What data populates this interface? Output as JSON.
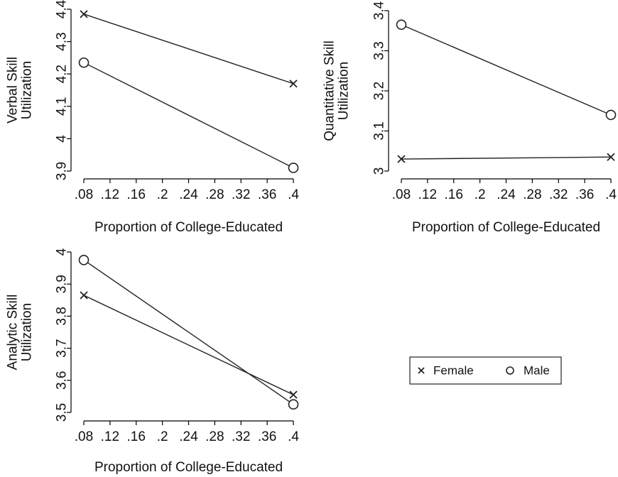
{
  "chart_data": [
    {
      "type": "line",
      "xlabel": "Proportion of College-Educated",
      "ylabel_lines": [
        "Verbal Skill",
        "Utilization"
      ],
      "x_ticks": [
        0.08,
        0.12,
        0.16,
        0.2,
        0.24,
        0.28,
        0.32,
        0.36,
        0.4
      ],
      "x_tick_labels": [
        ".08",
        ".12",
        ".16",
        ".2",
        ".24",
        ".28",
        ".32",
        ".36",
        ".4"
      ],
      "y_ticks": [
        3.9,
        4.0,
        4.1,
        4.2,
        4.3,
        4.4
      ],
      "y_tick_labels": [
        "3.9",
        "4",
        "4.1",
        "4.2",
        "4.3",
        "4.4"
      ],
      "xlim": [
        0.08,
        0.4
      ],
      "ylim": [
        3.9,
        4.4
      ],
      "series": [
        {
          "name": "Female",
          "marker": "x",
          "x": [
            0.08,
            0.4
          ],
          "y": [
            4.385,
            4.17
          ]
        },
        {
          "name": "Male",
          "marker": "o",
          "x": [
            0.08,
            0.4
          ],
          "y": [
            4.235,
            3.91
          ]
        }
      ]
    },
    {
      "type": "line",
      "xlabel": "Proportion of College-Educated",
      "ylabel_lines": [
        "Quantitative Skill",
        "Utilization"
      ],
      "x_ticks": [
        0.08,
        0.12,
        0.16,
        0.2,
        0.24,
        0.28,
        0.32,
        0.36,
        0.4
      ],
      "x_tick_labels": [
        ".08",
        ".12",
        ".16",
        ".2",
        ".24",
        ".28",
        ".32",
        ".36",
        ".4"
      ],
      "y_ticks": [
        3.0,
        3.1,
        3.2,
        3.3,
        3.4
      ],
      "y_tick_labels": [
        "3",
        "3.1",
        "3.2",
        "3.3",
        "3.4"
      ],
      "xlim": [
        0.08,
        0.4
      ],
      "ylim": [
        3.0,
        3.4
      ],
      "series": [
        {
          "name": "Female",
          "marker": "x",
          "x": [
            0.08,
            0.4
          ],
          "y": [
            3.03,
            3.035
          ]
        },
        {
          "name": "Male",
          "marker": "o",
          "x": [
            0.08,
            0.4
          ],
          "y": [
            3.365,
            3.14
          ]
        }
      ]
    },
    {
      "type": "line",
      "xlabel": "Proportion of College-Educated",
      "ylabel_lines": [
        "Analytic Skill",
        "Utilization"
      ],
      "x_ticks": [
        0.08,
        0.12,
        0.16,
        0.2,
        0.24,
        0.28,
        0.32,
        0.36,
        0.4
      ],
      "x_tick_labels": [
        ".08",
        ".12",
        ".16",
        ".2",
        ".24",
        ".28",
        ".32",
        ".36",
        ".4"
      ],
      "y_ticks": [
        3.5,
        3.6,
        3.7,
        3.8,
        3.9,
        4.0
      ],
      "y_tick_labels": [
        "3.5",
        "3.6",
        "3.7",
        "3.8",
        "3.9",
        "4"
      ],
      "xlim": [
        0.08,
        0.4
      ],
      "ylim": [
        3.5,
        4.0
      ],
      "series": [
        {
          "name": "Female",
          "marker": "x",
          "x": [
            0.08,
            0.4
          ],
          "y": [
            3.865,
            3.555
          ]
        },
        {
          "name": "Male",
          "marker": "o",
          "x": [
            0.08,
            0.4
          ],
          "y": [
            3.975,
            3.525
          ]
        }
      ]
    }
  ],
  "legend": {
    "placement": "bottom-right",
    "items": [
      {
        "label": "Female",
        "marker": "x"
      },
      {
        "label": "Male",
        "marker": "o"
      }
    ]
  }
}
